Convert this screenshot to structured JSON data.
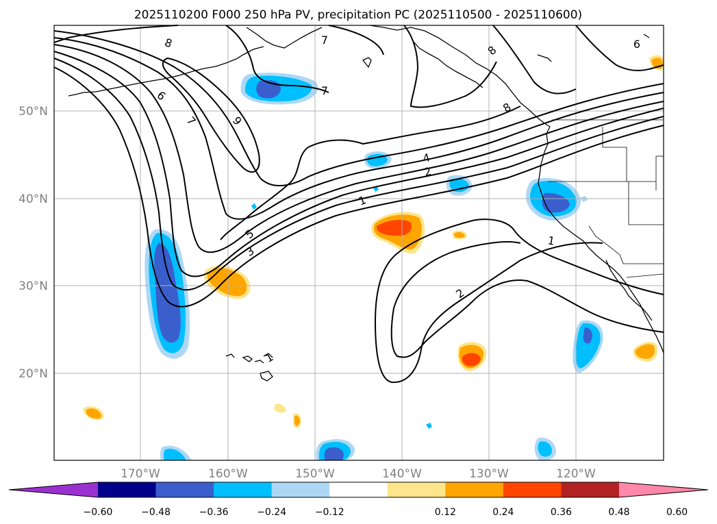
{
  "title": "2025110200 F000 250 hPa PV, precipitation PC (2025110500 - 2025110600)",
  "map": {
    "lat_labels": [
      "50°N",
      "40°N",
      "30°N",
      "20°N"
    ],
    "lon_labels": [
      "170°W",
      "160°W",
      "150°W",
      "140°W",
      "130°W",
      "120°W"
    ],
    "pv_contour_labels": [
      "1",
      "2",
      "3",
      "4",
      "5",
      "6",
      "7",
      "8",
      "9",
      "1",
      "2",
      "1",
      "8",
      "7",
      "7",
      "8",
      "6"
    ],
    "pv_levels": [
      1,
      2,
      3,
      4,
      5,
      6,
      7,
      8,
      9
    ]
  },
  "colorbar": {
    "ticks": [
      "−0.60",
      "−0.48",
      "−0.36",
      "−0.24",
      "−0.12",
      "0.12",
      "0.24",
      "0.36",
      "0.48",
      "0.60"
    ],
    "colors": [
      "#9b30d0",
      "#00008b",
      "#3a5fcd",
      "#00bfff",
      "#add8f5",
      "#ffffff",
      "#fde58b",
      "#ffa500",
      "#ff4500",
      "#b22222",
      "#ff88aa"
    ]
  },
  "colors": {
    "pos_light": "#fde58b",
    "pos_mid": "#ffa500",
    "pos_dark": "#ff4500",
    "neg_light": "#add8f5",
    "neg_mid": "#00bfff",
    "neg_dark": "#3a5fcd",
    "grid": "#b0b0b0",
    "contour": "#000000"
  }
}
